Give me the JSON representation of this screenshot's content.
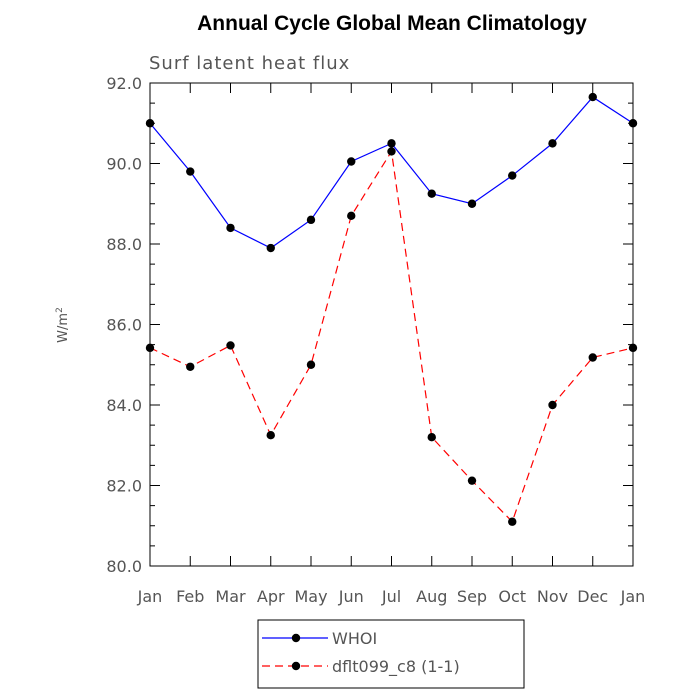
{
  "chart_data": {
    "type": "line",
    "title": "Annual Cycle Global Mean Climatology",
    "subtitle": "Surf latent heat flux",
    "xlabel": "",
    "ylabel": "W/m",
    "ylabel_sup": "2",
    "ylim": [
      80.0,
      92.0
    ],
    "yticks": [
      "80.0",
      "82.0",
      "84.0",
      "86.0",
      "88.0",
      "90.0",
      "92.0"
    ],
    "categories": [
      "Jan",
      "Feb",
      "Mar",
      "Apr",
      "May",
      "Jun",
      "Jul",
      "Aug",
      "Sep",
      "Oct",
      "Nov",
      "Dec",
      "Jan"
    ],
    "series": [
      {
        "name": "WHOI",
        "color": "#0000ff",
        "dash": "solid",
        "values": [
          91.0,
          89.8,
          88.4,
          87.9,
          88.6,
          90.05,
          90.5,
          89.25,
          89.0,
          89.7,
          90.5,
          91.65,
          91.0
        ]
      },
      {
        "name": "dflt099_c8 (1-1)",
        "color": "#ff0000",
        "dash": "dashed",
        "values": [
          85.42,
          84.95,
          85.48,
          83.25,
          85.0,
          88.7,
          90.3,
          83.2,
          82.12,
          81.1,
          84.0,
          85.18,
          85.42
        ]
      }
    ],
    "grid": false,
    "legend_position": "bottom"
  }
}
